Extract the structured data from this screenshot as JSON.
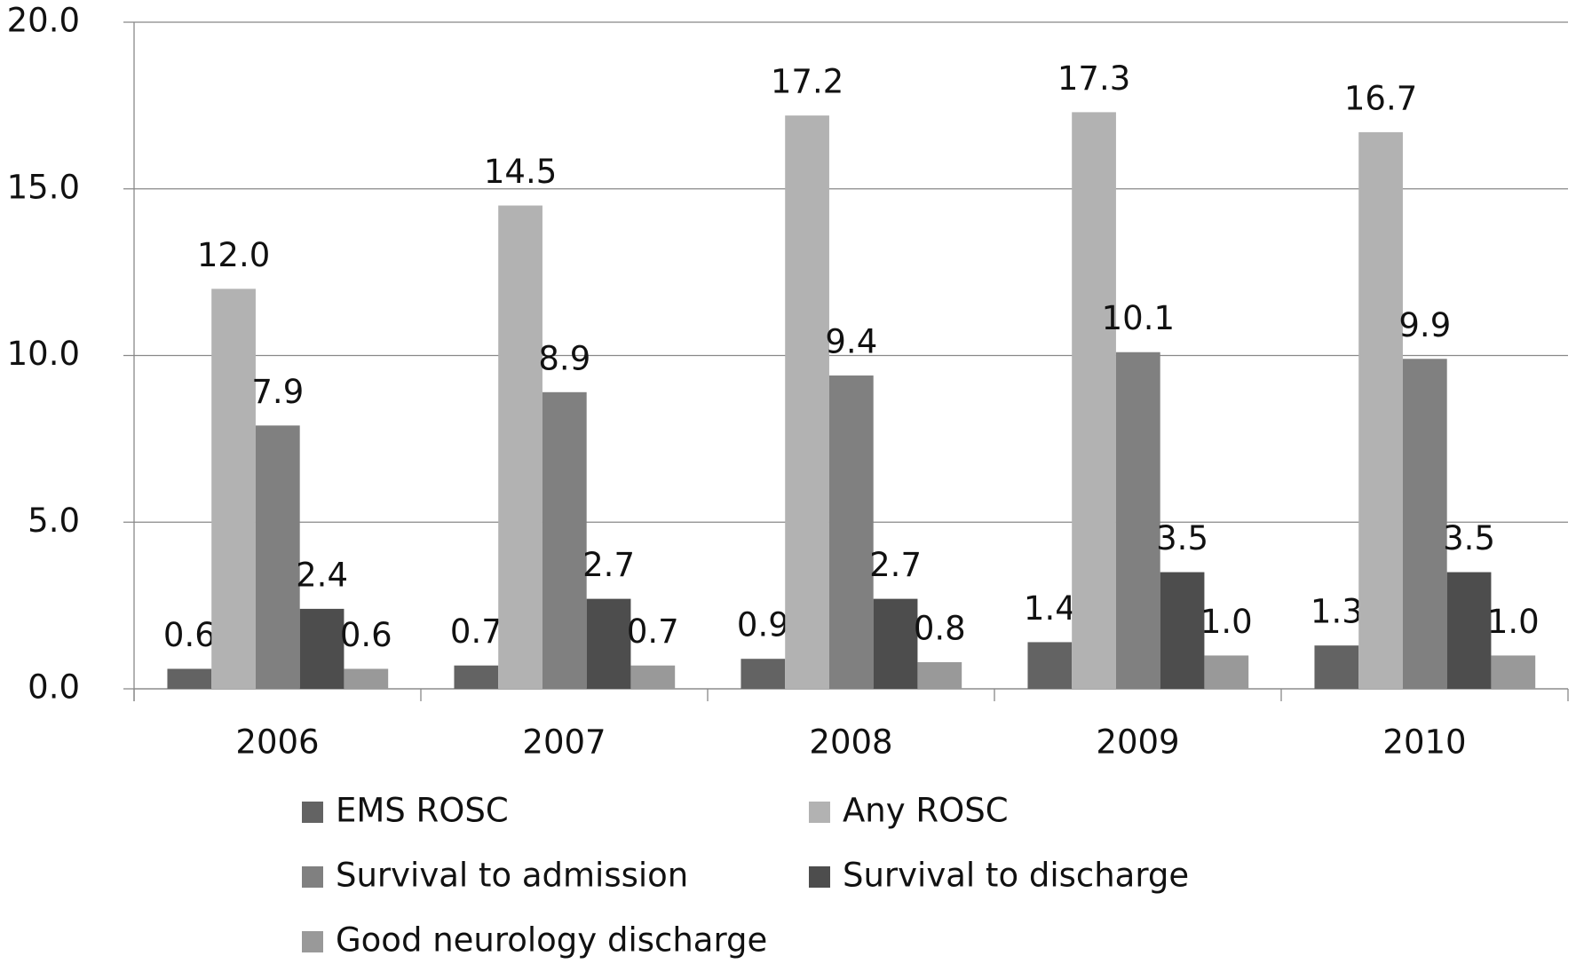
{
  "chart_data": {
    "type": "bar",
    "categories": [
      "2006",
      "2007",
      "2008",
      "2009",
      "2010"
    ],
    "series": [
      {
        "name": "EMS ROSC",
        "color": "#636363",
        "values": [
          0.6,
          0.7,
          0.9,
          1.4,
          1.3
        ],
        "value_labels": [
          "0.6",
          "0.7",
          "0.9",
          "1.4",
          "1.3"
        ]
      },
      {
        "name": "Any ROSC",
        "color": "#b2b2b2",
        "values": [
          12.0,
          14.5,
          17.2,
          17.3,
          16.7
        ],
        "value_labels": [
          "12.0",
          "14.5",
          "17.2",
          "17.3",
          "16.7"
        ]
      },
      {
        "name": "Survival to admission",
        "color": "#808080",
        "values": [
          7.9,
          8.9,
          9.4,
          10.1,
          9.9
        ],
        "value_labels": [
          "7.9",
          "8.9",
          "9.4",
          "10.1",
          "9.9"
        ]
      },
      {
        "name": "Survival to discharge",
        "color": "#4d4d4d",
        "values": [
          2.4,
          2.7,
          2.7,
          3.5,
          3.5
        ],
        "value_labels": [
          "2.4",
          "2.7",
          "2.7",
          "3.5",
          "3.5"
        ]
      },
      {
        "name": "Good neurology discharge",
        "color": "#999999",
        "values": [
          0.6,
          0.7,
          0.8,
          1.0,
          1.0
        ],
        "value_labels": [
          "0.6",
          "0.7",
          "0.8",
          "1.0",
          "1.0"
        ]
      }
    ],
    "ylim": [
      0,
      20
    ],
    "yticks": [
      {
        "value": 0,
        "label": "0.0"
      },
      {
        "value": 5,
        "label": "5.0"
      },
      {
        "value": 10,
        "label": "10.0"
      },
      {
        "value": 15,
        "label": "15.0"
      },
      {
        "value": 20,
        "label": "20.0"
      }
    ],
    "grid": true,
    "legend": "bottom"
  }
}
